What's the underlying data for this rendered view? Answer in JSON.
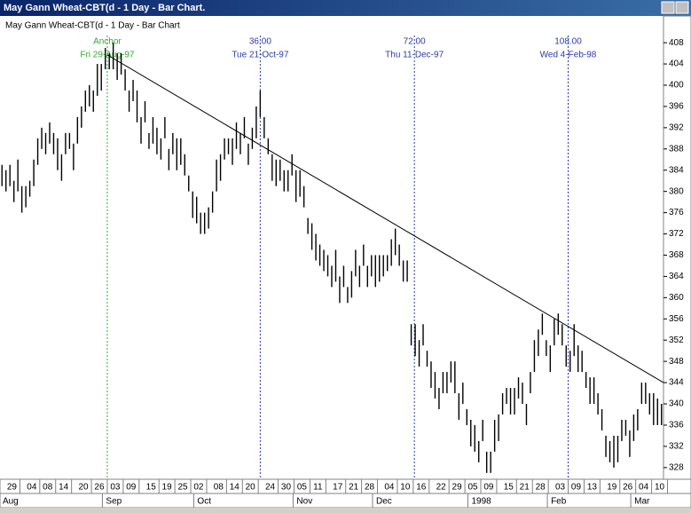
{
  "window_title": "May Gann Wheat-CBT(d - 1 Day - Bar Chart.",
  "chart_data": {
    "type": "ohlc",
    "title": "May Gann Wheat-CBT(d - 1 Day - Bar Chart",
    "color": "#000000",
    "xlim": [
      0,
      167
    ],
    "ylim": [
      325.8,
      412.7
    ],
    "yticks": [
      408,
      404,
      400,
      396,
      392,
      388,
      384,
      380,
      376,
      372,
      368,
      364,
      360,
      356,
      352,
      348,
      344,
      340,
      336,
      332,
      328
    ],
    "xticks": [
      {
        "value": 3,
        "label": "29"
      },
      {
        "value": 8,
        "label": "04"
      },
      {
        "value": 12,
        "label": "08"
      },
      {
        "value": 16,
        "label": "14"
      },
      {
        "value": 21,
        "label": "20"
      },
      {
        "value": 25,
        "label": "26"
      },
      {
        "value": 29,
        "label": "03"
      },
      {
        "value": 33,
        "label": "09"
      },
      {
        "value": 38,
        "label": "15"
      },
      {
        "value": 42,
        "label": "19"
      },
      {
        "value": 46,
        "label": "25"
      },
      {
        "value": 50,
        "label": "02"
      },
      {
        "value": 55,
        "label": "08"
      },
      {
        "value": 59,
        "label": "14"
      },
      {
        "value": 63,
        "label": "20"
      },
      {
        "value": 68,
        "label": "24"
      },
      {
        "value": 72,
        "label": "30"
      },
      {
        "value": 76,
        "label": "05"
      },
      {
        "value": 80,
        "label": "11"
      },
      {
        "value": 85,
        "label": "17"
      },
      {
        "value": 89,
        "label": "21"
      },
      {
        "value": 93,
        "label": "28"
      },
      {
        "value": 98,
        "label": "04"
      },
      {
        "value": 102,
        "label": "10"
      },
      {
        "value": 106,
        "label": "16"
      },
      {
        "value": 111,
        "label": "22"
      },
      {
        "value": 115,
        "label": "29"
      },
      {
        "value": 119,
        "label": "05"
      },
      {
        "value": 123,
        "label": "09"
      },
      {
        "value": 128,
        "label": "15"
      },
      {
        "value": 132,
        "label": "21"
      },
      {
        "value": 136,
        "label": "28"
      },
      {
        "value": 141,
        "label": "03"
      },
      {
        "value": 145,
        "label": "09"
      },
      {
        "value": 149,
        "label": "13"
      },
      {
        "value": 154,
        "label": "19"
      },
      {
        "value": 158,
        "label": "26"
      },
      {
        "value": 162,
        "label": "04"
      },
      {
        "value": 166,
        "label": "10"
      }
    ],
    "months": [
      {
        "value": 2,
        "label": "Aug"
      },
      {
        "value": 28,
        "label": "Sep"
      },
      {
        "value": 51,
        "label": "Oct"
      },
      {
        "value": 76,
        "label": "Nov"
      },
      {
        "value": 96,
        "label": "Dec"
      },
      {
        "value": 120,
        "label": "1998"
      },
      {
        "value": 140,
        "label": "Feb"
      },
      {
        "value": 161,
        "label": "Mar"
      }
    ],
    "markers": [
      {
        "x": 27,
        "color": "#33a833",
        "labels": [
          "Anchor",
          "Fri 29-Aug-97"
        ]
      },
      {
        "x": 65.5,
        "color": "#2a3aa8",
        "labels": [
          "36.00",
          "Tue 21-Oct-97"
        ]
      },
      {
        "x": 104.3,
        "color": "#2a3aa8",
        "labels": [
          "72.00",
          "Thu 11-Dec-97"
        ]
      },
      {
        "x": 143,
        "color": "#2a3aa8",
        "labels": [
          "108.00",
          "Wed 4-Feb-98"
        ]
      }
    ],
    "trendline": {
      "x": [
        27,
        167
      ],
      "y": [
        405.7,
        344
      ]
    },
    "bars": {
      "high": [
        385,
        384,
        385,
        382,
        386,
        381,
        381,
        382,
        386,
        390,
        392,
        391,
        393,
        391,
        390,
        387,
        391,
        391,
        389,
        394,
        396,
        399,
        400,
        399,
        404,
        404,
        407,
        406,
        408,
        406,
        406,
        403,
        399,
        401,
        399,
        394,
        397,
        391,
        394,
        392,
        390,
        394,
        388,
        391,
        390,
        390,
        387,
        383,
        380,
        379,
        376,
        376,
        377,
        380,
        386,
        387,
        390,
        390,
        390,
        393,
        391,
        394,
        389,
        392,
        396,
        399,
        394,
        390,
        387,
        386,
        386,
        384,
        384,
        387,
        384,
        384,
        381,
        375,
        374,
        372,
        370,
        369,
        368,
        366,
        369,
        364,
        366,
        362,
        365,
        369,
        366,
        370,
        366,
        368,
        368,
        368,
        368,
        368,
        371,
        373,
        370,
        367,
        367,
        355,
        355,
        352,
        355,
        350,
        348,
        346,
        343,
        346,
        346,
        348,
        348,
        342,
        344,
        339,
        337,
        336,
        333,
        337,
        331,
        331,
        337,
        338,
        342,
        343,
        343,
        343,
        345,
        344,
        340,
        346,
        352,
        354,
        357,
        352,
        351,
        356,
        357,
        355,
        351,
        350,
        355,
        351,
        350,
        346,
        345,
        345,
        342,
        339,
        334,
        333,
        334,
        334,
        337,
        337,
        335,
        338,
        339,
        344,
        344,
        342,
        342,
        341,
        340
      ],
      "low": [
        381,
        380,
        381,
        378,
        380,
        376,
        377,
        379,
        381,
        385,
        388,
        387,
        389,
        387,
        384,
        382,
        387,
        388,
        384,
        389,
        392,
        395,
        396,
        395,
        398,
        399,
        403,
        403,
        403,
        401,
        402,
        399,
        395,
        397,
        393,
        389,
        393,
        388,
        389,
        387,
        386,
        390,
        384,
        387,
        384,
        385,
        383,
        380,
        375,
        374,
        372,
        372,
        373,
        376,
        380,
        382,
        386,
        387,
        385,
        388,
        387,
        390,
        385,
        388,
        390,
        394,
        390,
        387,
        382,
        381,
        382,
        380,
        380,
        383,
        378,
        379,
        377,
        372,
        369,
        367,
        366,
        365,
        364,
        362,
        363,
        359,
        362,
        359,
        360,
        364,
        362,
        366,
        362,
        364,
        362,
        363,
        364,
        365,
        366,
        368,
        366,
        363,
        363,
        351,
        349,
        347,
        351,
        347,
        343,
        341,
        339,
        342,
        342,
        344,
        342,
        337,
        340,
        336,
        332,
        331,
        329,
        333,
        327,
        327,
        331,
        333,
        338,
        340,
        338,
        338,
        341,
        340,
        336,
        342,
        346,
        349,
        353,
        349,
        346,
        351,
        353,
        351,
        347,
        346,
        349,
        346,
        346,
        343,
        340,
        340,
        338,
        335,
        330,
        329,
        328,
        329,
        333,
        334,
        330,
        333,
        335,
        340,
        340,
        338,
        336,
        336,
        336
      ]
    }
  }
}
